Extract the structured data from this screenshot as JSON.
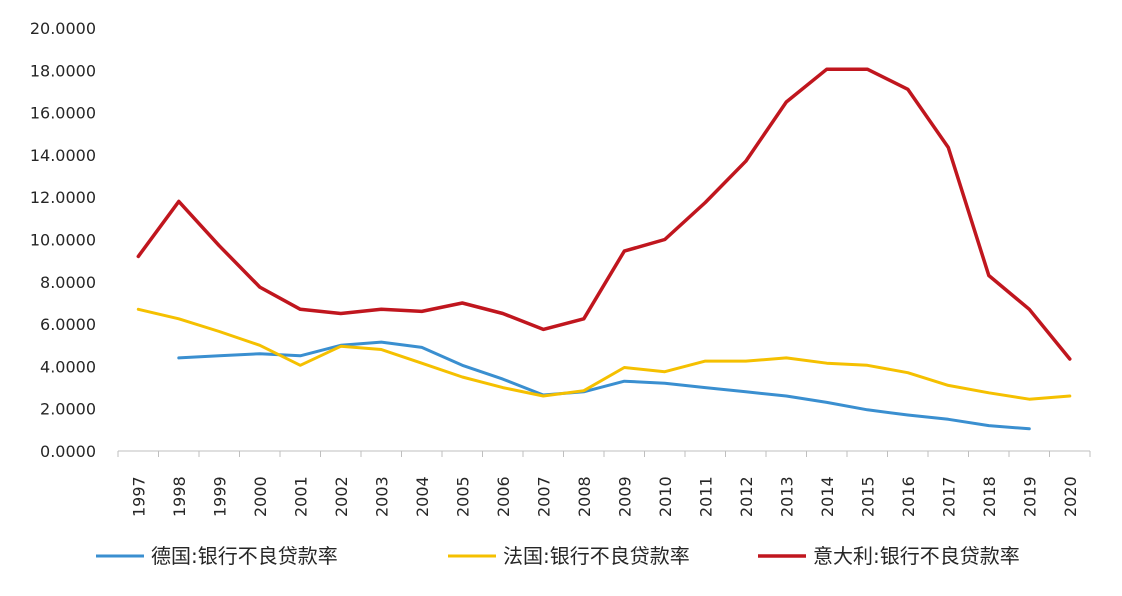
{
  "chart_data": {
    "type": "line",
    "categories": [
      "1997",
      "1998",
      "1999",
      "2000",
      "2001",
      "2002",
      "2003",
      "2004",
      "2005",
      "2006",
      "2007",
      "2008",
      "2009",
      "2010",
      "2011",
      "2012",
      "2013",
      "2014",
      "2015",
      "2016",
      "2017",
      "2018",
      "2019",
      "2020"
    ],
    "ylim": [
      0,
      20
    ],
    "y_ticks": [
      "0.0000",
      "2.0000",
      "4.0000",
      "6.0000",
      "8.0000",
      "10.0000",
      "12.0000",
      "14.0000",
      "16.0000",
      "18.0000",
      "20.0000"
    ],
    "grid": false,
    "legend_position": "bottom",
    "series": [
      {
        "name": "德国:银行不良贷款率",
        "color": "#3a8fd0",
        "values": [
          null,
          4.4,
          4.5,
          4.6,
          4.5,
          5.0,
          5.15,
          4.9,
          4.05,
          3.4,
          2.65,
          2.8,
          3.3,
          3.2,
          3.0,
          2.8,
          2.6,
          2.3,
          1.95,
          1.7,
          1.5,
          1.2,
          1.05,
          null
        ]
      },
      {
        "name": "法国:银行不良贷款率",
        "color": "#f5c000",
        "values": [
          6.7,
          6.25,
          5.65,
          5.0,
          4.05,
          4.95,
          4.8,
          4.15,
          3.5,
          3.0,
          2.6,
          2.85,
          3.95,
          3.75,
          4.25,
          4.25,
          4.4,
          4.15,
          4.05,
          3.7,
          3.1,
          2.75,
          2.45,
          2.6
        ]
      },
      {
        "name": "意大利:银行不良贷款率",
        "color": "#c0161e",
        "values": [
          9.2,
          11.8,
          9.7,
          7.75,
          6.7,
          6.5,
          6.7,
          6.6,
          7.0,
          6.5,
          5.75,
          6.25,
          9.45,
          10.0,
          11.75,
          13.7,
          16.5,
          18.05,
          18.05,
          17.1,
          14.35,
          8.3,
          6.7,
          4.35
        ]
      }
    ]
  }
}
